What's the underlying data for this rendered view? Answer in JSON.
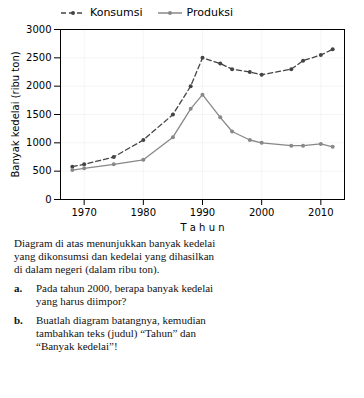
{
  "chart_data": {
    "type": "line",
    "x": [
      1968,
      1970,
      1975,
      1980,
      1985,
      1988,
      1990,
      1993,
      1995,
      1998,
      2000,
      2005,
      2007,
      2010,
      2012
    ],
    "series": [
      {
        "name": "Konsumsi",
        "color": "#444444",
        "line_style": "dashed",
        "marker": "dot",
        "values": [
          580,
          620,
          750,
          1050,
          1500,
          2000,
          2500,
          2400,
          2300,
          2250,
          2200,
          2300,
          2450,
          2550,
          2650
        ]
      },
      {
        "name": "Produksi",
        "color": "#888888",
        "line_style": "solid",
        "marker": "dot",
        "values": [
          520,
          550,
          620,
          700,
          1100,
          1600,
          1850,
          1450,
          1200,
          1050,
          1000,
          950,
          950,
          980,
          930
        ]
      }
    ],
    "xlim": [
      1966,
      2014
    ],
    "ylim": [
      0,
      3000
    ],
    "xticks": [
      1970,
      1980,
      1990,
      2000,
      2010
    ],
    "yticks": [
      0,
      500,
      1000,
      1500,
      2000,
      2500,
      3000
    ],
    "xlabel": "T a h u n",
    "ylabel": "Banyak kedelai (ribu ton)",
    "grid": true,
    "legend": "upper left",
    "annotations": [
      {
        "text": "Diagram di atas menunjukkan banyak kedelai\nyang dikonsumsi dan kedelai yang dihasilkan\ndi dalam negeri (dalam ribu ton)."
      },
      {
        "label": "a.",
        "text": "Pada tahun 2000, berapa banyak kedelai\nyang harus diimpor?"
      },
      {
        "label": "b.",
        "text": "Buatlah diagram batangnya, kemudian\ntambahkan teks (judul) “Tahun” dan\n“Banyak kedelai”!"
      }
    ]
  }
}
